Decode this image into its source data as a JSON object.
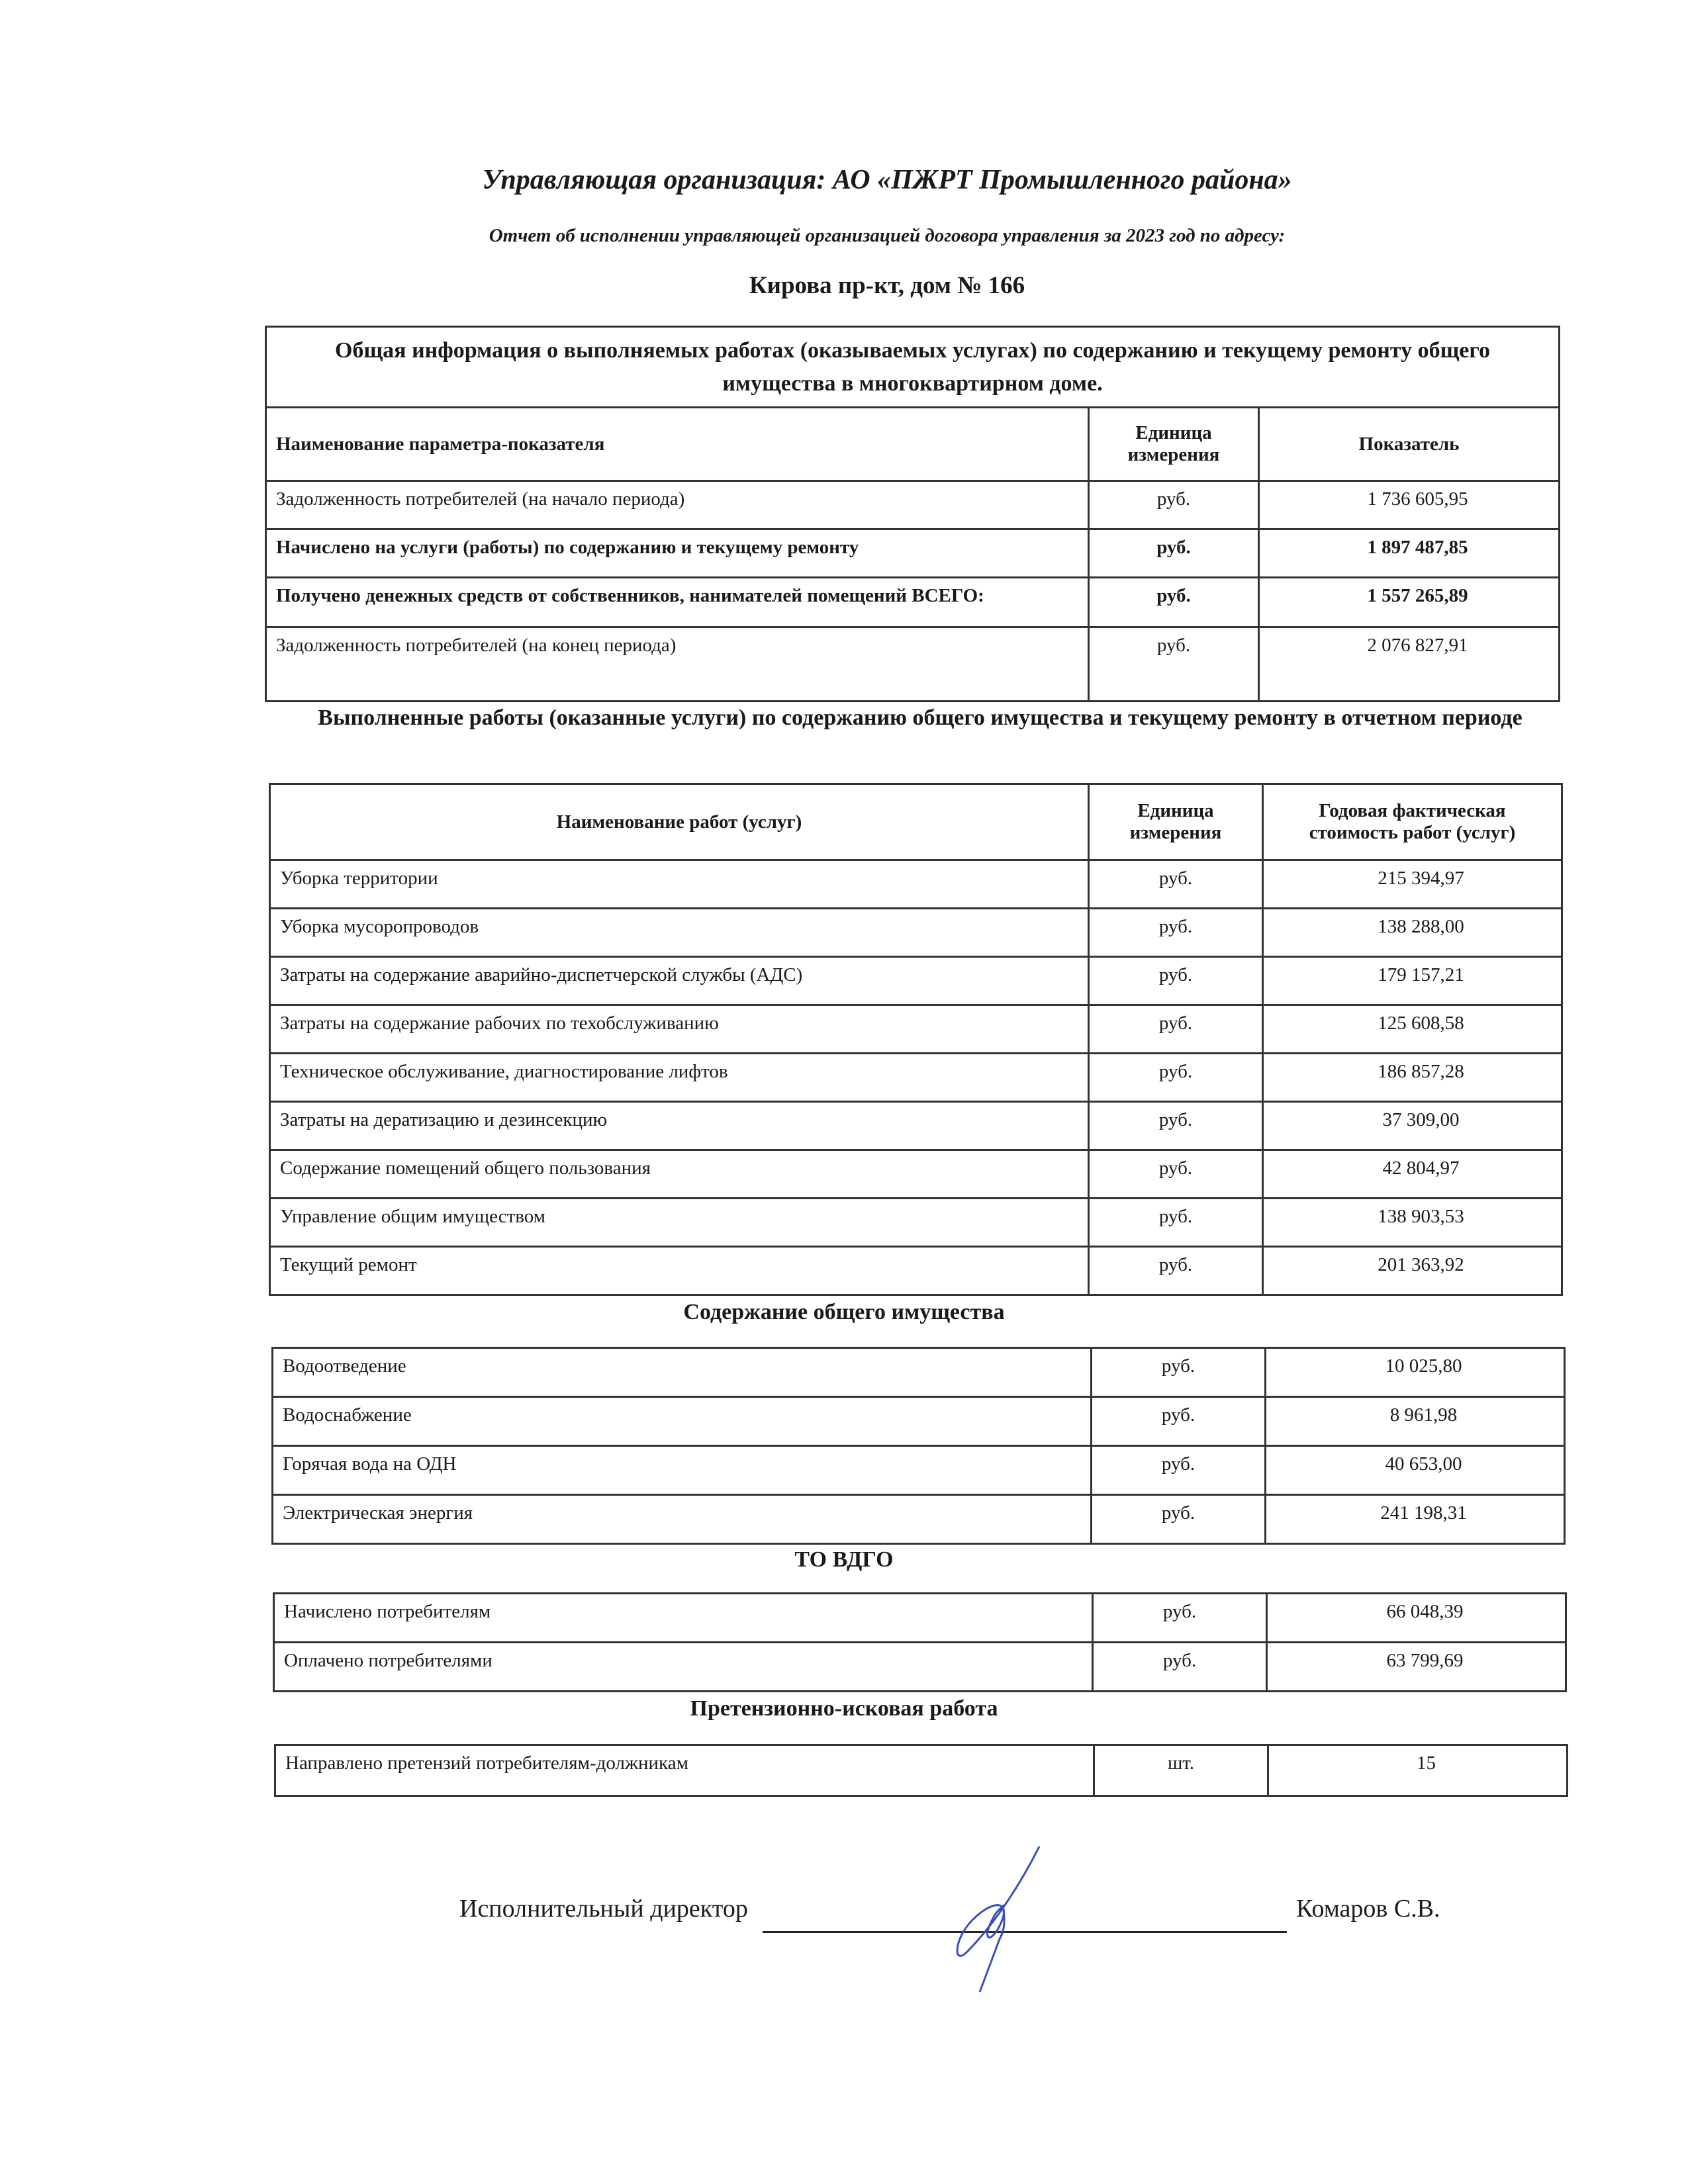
{
  "header": {
    "title": "Управляющая организация: АО «ПЖРТ Промышленного района»",
    "subtitle": "Отчет об исполнении управляющей организацией договора управления за 2023 год по адресу:",
    "address": "Кирова пр-кт, дом № 166"
  },
  "general": {
    "caption": "Общая информация о выполняемых работах (оказываемых услугах) по содержанию и текущему ремонту общего имущества в многоквартирном доме.",
    "columns": [
      "Наименование параметра-показателя",
      "Единица измерения",
      "Показатель"
    ],
    "rows": [
      {
        "name": "Задолженность потребителей (на начало периода)",
        "unit": "руб.",
        "value": "1 736 605,95",
        "bold": false
      },
      {
        "name": "Начислено на услуги (работы) по содержанию и текущему ремонту",
        "unit": "руб.",
        "value": "1 897 487,85",
        "bold": true
      },
      {
        "name": "Получено денежных средств от собственников, нанимателей помещений ВСЕГО:",
        "unit": "руб.",
        "value": "1 557 265,89",
        "bold": true
      },
      {
        "name": "Задолженность потребителей (на конец периода)",
        "unit": "руб.",
        "value": "2 076 827,91",
        "bold": false
      }
    ]
  },
  "works": {
    "heading": "Выполненные работы (оказанные услуги) по содержанию общего имущества и текущему ремонту в отчетном периоде",
    "columns": [
      "Наименование работ (услуг)",
      "Единица измерения",
      "Годовая фактическая стоимость работ (услуг)"
    ],
    "rows": [
      {
        "name": "Уборка территории",
        "unit": "руб.",
        "value": "215 394,97"
      },
      {
        "name": "Уборка мусоропроводов",
        "unit": "руб.",
        "value": "138 288,00"
      },
      {
        "name": "Затраты на содержание аварийно-диспетчерской службы (АДС)",
        "unit": "руб.",
        "value": "179 157,21"
      },
      {
        "name": "Затраты на содержание рабочих по техобслуживанию",
        "unit": "руб.",
        "value": "125 608,58"
      },
      {
        "name": "Техническое обслуживание, диагностирование лифтов",
        "unit": "руб.",
        "value": "186 857,28"
      },
      {
        "name": "Затраты на дератизацию и дезинсекцию",
        "unit": "руб.",
        "value": "37 309,00"
      },
      {
        "name": "Содержание помещений общего пользования",
        "unit": "руб.",
        "value": "42 804,97"
      },
      {
        "name": "Управление общим имуществом",
        "unit": "руб.",
        "value": "138 903,53"
      },
      {
        "name": "Текущий ремонт",
        "unit": "руб.",
        "value": "201 363,92"
      }
    ]
  },
  "common": {
    "heading": "Содержание общего имущества",
    "rows": [
      {
        "name": "Водоотведение",
        "unit": "руб.",
        "value": "10 025,80"
      },
      {
        "name": "Водоснабжение",
        "unit": "руб.",
        "value": "8 961,98"
      },
      {
        "name": "Горячая вода на ОДН",
        "unit": "руб.",
        "value": "40 653,00"
      },
      {
        "name": "Электрическая энергия",
        "unit": "руб.",
        "value": "241 198,31"
      }
    ]
  },
  "vdgo": {
    "heading": "ТО ВДГО",
    "rows": [
      {
        "name": "Начислено потребителям",
        "unit": "руб.",
        "value": "66 048,39"
      },
      {
        "name": "Оплачено потребителями",
        "unit": "руб.",
        "value": "63 799,69"
      }
    ]
  },
  "claims": {
    "heading": "Претензионно-исковая работа",
    "rows": [
      {
        "name": "Направлено претензий потребителям-должникам",
        "unit": "шт.",
        "value": "15"
      }
    ]
  },
  "signature": {
    "position": "Исполнительный директор",
    "name": "Комаров С.В.",
    "ink_color": "#3a4fb8"
  }
}
